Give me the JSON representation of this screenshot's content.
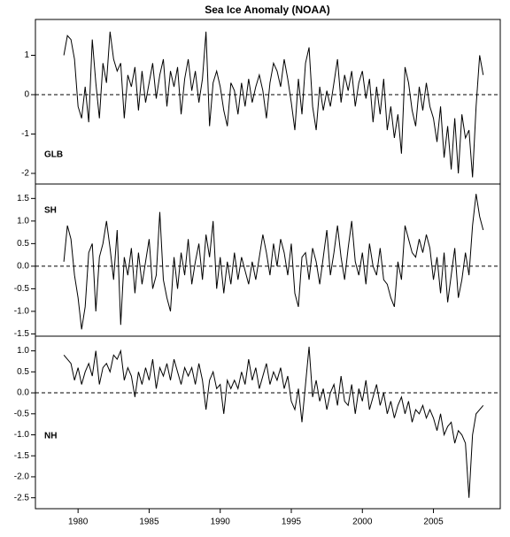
{
  "chart_data": [
    {
      "type": "line",
      "title": "Sea Ice Anomaly (NOAA)",
      "annotation": "GLB",
      "color": "#000000",
      "reference_line": 0,
      "xlim": [
        1977.0,
        2009.7
      ],
      "ylim": [
        -2.27,
        1.91
      ],
      "yticks": [
        -2,
        -1,
        0,
        1
      ],
      "x": [
        1979,
        1979.25,
        1979.5,
        1979.75,
        1980,
        1980.25,
        1980.5,
        1980.75,
        1981,
        1981.25,
        1981.5,
        1981.75,
        1982,
        1982.25,
        1982.5,
        1982.75,
        1983,
        1983.25,
        1983.5,
        1983.75,
        1984,
        1984.25,
        1984.5,
        1984.75,
        1985,
        1985.25,
        1985.5,
        1985.75,
        1986,
        1986.25,
        1986.5,
        1986.75,
        1987,
        1987.25,
        1987.5,
        1987.75,
        1988,
        1988.25,
        1988.5,
        1988.75,
        1989,
        1989.25,
        1989.5,
        1989.75,
        1990,
        1990.25,
        1990.5,
        1990.75,
        1991,
        1991.25,
        1991.5,
        1991.75,
        1992,
        1992.25,
        1992.5,
        1992.75,
        1993,
        1993.25,
        1993.5,
        1993.75,
        1994,
        1994.25,
        1994.5,
        1994.75,
        1995,
        1995.25,
        1995.5,
        1995.75,
        1996,
        1996.25,
        1996.5,
        1996.75,
        1997,
        1997.25,
        1997.5,
        1997.75,
        1998,
        1998.25,
        1998.5,
        1998.75,
        1999,
        1999.25,
        1999.5,
        1999.75,
        2000,
        2000.25,
        2000.5,
        2000.75,
        2001,
        2001.25,
        2001.5,
        2001.75,
        2002,
        2002.25,
        2002.5,
        2002.75,
        2003,
        2003.25,
        2003.5,
        2003.75,
        2004,
        2004.25,
        2004.5,
        2004.75,
        2005,
        2005.25,
        2005.5,
        2005.75,
        2006,
        2006.25,
        2006.5,
        2006.75,
        2007,
        2007.25,
        2007.5,
        2007.75,
        2008,
        2008.25,
        2008.5
      ],
      "values": [
        1.0,
        1.5,
        1.4,
        0.9,
        -0.3,
        -0.6,
        0.2,
        -0.7,
        1.4,
        0.3,
        -0.6,
        0.8,
        0.3,
        1.6,
        0.9,
        0.6,
        0.8,
        -0.6,
        0.5,
        0.2,
        0.7,
        -0.4,
        0.6,
        -0.2,
        0.3,
        0.8,
        -0.1,
        0.5,
        0.9,
        -0.3,
        0.6,
        0.2,
        0.7,
        -0.5,
        0.4,
        0.9,
        0.1,
        0.6,
        -0.2,
        0.4,
        1.6,
        -0.8,
        0.3,
        0.6,
        0.2,
        -0.4,
        -0.8,
        0.3,
        0.1,
        -0.5,
        0.3,
        -0.3,
        0.4,
        -0.2,
        0.2,
        0.5,
        0.1,
        -0.6,
        0.3,
        0.8,
        0.6,
        0.2,
        0.9,
        0.4,
        -0.2,
        -0.9,
        0.4,
        -0.5,
        0.8,
        1.2,
        -0.3,
        -0.9,
        0.2,
        -0.4,
        0.1,
        -0.3,
        0.3,
        0.9,
        -0.2,
        0.5,
        0.1,
        0.6,
        -0.3,
        0.3,
        0.6,
        -0.1,
        0.4,
        -0.7,
        0.2,
        -0.5,
        0.4,
        -0.9,
        -0.3,
        -1.1,
        -0.5,
        -1.5,
        0.7,
        0.3,
        -0.4,
        -0.8,
        0.2,
        -0.4,
        0.3,
        -0.3,
        -0.6,
        -1.2,
        -0.3,
        -1.6,
        -0.8,
        -1.9,
        -0.6,
        -2.0,
        -0.5,
        -1.1,
        -0.9,
        -2.1,
        -0.3,
        1.0,
        0.5
      ]
    },
    {
      "type": "line",
      "annotation": "SH",
      "color": "#000000",
      "reference_line": 0,
      "xlim": [
        1977.0,
        2009.7
      ],
      "ylim": [
        -1.55,
        1.82
      ],
      "yticks": [
        -1.5,
        {
          "value": -1,
          "label": "-1.0"
        },
        -0.5,
        {
          "value": 0,
          "label": "0.0"
        },
        0.5,
        {
          "value": 1,
          "label": "1.0"
        },
        1.5
      ],
      "x": [
        1979,
        1979.25,
        1979.5,
        1979.75,
        1980,
        1980.25,
        1980.5,
        1980.75,
        1981,
        1981.25,
        1981.5,
        1981.75,
        1982,
        1982.25,
        1982.5,
        1982.75,
        1983,
        1983.25,
        1983.5,
        1983.75,
        1984,
        1984.25,
        1984.5,
        1984.75,
        1985,
        1985.25,
        1985.5,
        1985.75,
        1986,
        1986.25,
        1986.5,
        1986.75,
        1987,
        1987.25,
        1987.5,
        1987.75,
        1988,
        1988.25,
        1988.5,
        1988.75,
        1989,
        1989.25,
        1989.5,
        1989.75,
        1990,
        1990.25,
        1990.5,
        1990.75,
        1991,
        1991.25,
        1991.5,
        1991.75,
        1992,
        1992.25,
        1992.5,
        1992.75,
        1993,
        1993.25,
        1993.5,
        1993.75,
        1994,
        1994.25,
        1994.5,
        1994.75,
        1995,
        1995.25,
        1995.5,
        1995.75,
        1996,
        1996.25,
        1996.5,
        1996.75,
        1997,
        1997.25,
        1997.5,
        1997.75,
        1998,
        1998.25,
        1998.5,
        1998.75,
        1999,
        1999.25,
        1999.5,
        1999.75,
        2000,
        2000.25,
        2000.5,
        2000.75,
        2001,
        2001.25,
        2001.5,
        2001.75,
        2002,
        2002.25,
        2002.5,
        2002.75,
        2003,
        2003.25,
        2003.5,
        2003.75,
        2004,
        2004.25,
        2004.5,
        2004.75,
        2005,
        2005.25,
        2005.5,
        2005.75,
        2006,
        2006.25,
        2006.5,
        2006.75,
        2007,
        2007.25,
        2007.5,
        2007.75,
        2008,
        2008.25,
        2008.5
      ],
      "values": [
        0.1,
        0.9,
        0.6,
        -0.2,
        -0.7,
        -1.4,
        -0.9,
        0.3,
        0.5,
        -1.0,
        0.2,
        0.5,
        1.0,
        0.4,
        -0.3,
        0.8,
        -1.3,
        0.2,
        -0.2,
        0.4,
        -0.6,
        0.3,
        -0.4,
        0.1,
        0.6,
        -0.5,
        -0.2,
        1.2,
        -0.3,
        -0.7,
        -1.0,
        0.2,
        -0.5,
        0.3,
        -0.2,
        0.6,
        -0.4,
        0.1,
        0.5,
        -0.3,
        0.7,
        0.2,
        1.0,
        -0.5,
        0.2,
        -0.6,
        0.1,
        -0.4,
        0.3,
        -0.3,
        0.2,
        -0.1,
        -0.4,
        0.1,
        -0.3,
        0.2,
        0.7,
        0.3,
        -0.2,
        0.5,
        0.0,
        0.6,
        0.3,
        -0.2,
        0.5,
        -0.6,
        -0.9,
        0.2,
        0.3,
        -0.3,
        0.4,
        0.1,
        -0.4,
        0.2,
        0.8,
        -0.2,
        0.3,
        0.9,
        0.2,
        -0.3,
        0.4,
        1.0,
        0.1,
        -0.2,
        0.3,
        -0.4,
        0.5,
        0.0,
        -0.2,
        0.4,
        -0.3,
        -0.4,
        -0.7,
        -0.9,
        0.1,
        -0.3,
        0.9,
        0.6,
        0.3,
        0.2,
        0.6,
        0.3,
        0.7,
        0.4,
        -0.3,
        0.2,
        -0.6,
        0.3,
        -0.8,
        -0.2,
        0.4,
        -0.7,
        -0.3,
        0.3,
        -0.2,
        0.9,
        1.6,
        1.1,
        0.8
      ]
    },
    {
      "type": "line",
      "annotation": "NH",
      "color": "#000000",
      "reference_line": 0,
      "xlim": [
        1977.0,
        2009.7
      ],
      "ylim": [
        -2.76,
        1.35
      ],
      "yticks": [
        -2.5,
        {
          "value": -2,
          "label": "-2.0"
        },
        -1.5,
        {
          "value": -1,
          "label": "-1.0"
        },
        -0.5,
        {
          "value": 0,
          "label": "0.0"
        },
        0.5,
        {
          "value": 1,
          "label": "1.0"
        }
      ],
      "xticks": [
        1980,
        1985,
        1990,
        1995,
        2000,
        2005
      ],
      "x": [
        1979,
        1979.25,
        1979.5,
        1979.75,
        1980,
        1980.25,
        1980.5,
        1980.75,
        1981,
        1981.25,
        1981.5,
        1981.75,
        1982,
        1982.25,
        1982.5,
        1982.75,
        1983,
        1983.25,
        1983.5,
        1983.75,
        1984,
        1984.25,
        1984.5,
        1984.75,
        1985,
        1985.25,
        1985.5,
        1985.75,
        1986,
        1986.25,
        1986.5,
        1986.75,
        1987,
        1987.25,
        1987.5,
        1987.75,
        1988,
        1988.25,
        1988.5,
        1988.75,
        1989,
        1989.25,
        1989.5,
        1989.75,
        1990,
        1990.25,
        1990.5,
        1990.75,
        1991,
        1991.25,
        1991.5,
        1991.75,
        1992,
        1992.25,
        1992.5,
        1992.75,
        1993,
        1993.25,
        1993.5,
        1993.75,
        1994,
        1994.25,
        1994.5,
        1994.75,
        1995,
        1995.25,
        1995.5,
        1995.75,
        1996,
        1996.25,
        1996.5,
        1996.75,
        1997,
        1997.25,
        1997.5,
        1997.75,
        1998,
        1998.25,
        1998.5,
        1998.75,
        1999,
        1999.25,
        1999.5,
        1999.75,
        2000,
        2000.25,
        2000.5,
        2000.75,
        2001,
        2001.25,
        2001.5,
        2001.75,
        2002,
        2002.25,
        2002.5,
        2002.75,
        2003,
        2003.25,
        2003.5,
        2003.75,
        2004,
        2004.25,
        2004.5,
        2004.75,
        2005,
        2005.25,
        2005.5,
        2005.75,
        2006,
        2006.25,
        2006.5,
        2006.75,
        2007,
        2007.25,
        2007.5,
        2007.75,
        2008,
        2008.25,
        2008.5
      ],
      "values": [
        0.9,
        0.8,
        0.7,
        0.3,
        0.6,
        0.2,
        0.5,
        0.7,
        0.4,
        1.0,
        0.2,
        0.6,
        0.7,
        0.5,
        0.9,
        0.8,
        1.0,
        0.3,
        0.6,
        0.4,
        -0.1,
        0.5,
        0.2,
        0.6,
        0.3,
        0.8,
        0.1,
        0.6,
        0.4,
        0.7,
        0.3,
        0.8,
        0.5,
        0.2,
        0.6,
        0.4,
        0.6,
        0.2,
        0.7,
        0.3,
        -0.4,
        0.3,
        0.5,
        0.1,
        0.2,
        -0.5,
        0.3,
        0.1,
        0.3,
        0.1,
        0.5,
        0.2,
        0.8,
        0.3,
        0.6,
        0.1,
        0.4,
        0.7,
        0.2,
        0.5,
        0.3,
        0.6,
        0.1,
        0.4,
        -0.2,
        -0.4,
        0.1,
        -0.7,
        0.2,
        1.1,
        -0.1,
        0.3,
        -0.2,
        0.1,
        -0.4,
        0.0,
        0.2,
        -0.3,
        0.4,
        -0.2,
        -0.3,
        0.2,
        -0.5,
        0.1,
        -0.2,
        0.3,
        -0.4,
        -0.1,
        0.2,
        -0.3,
        0.0,
        -0.5,
        -0.2,
        -0.6,
        -0.3,
        -0.1,
        -0.5,
        -0.2,
        -0.7,
        -0.4,
        -0.5,
        -0.3,
        -0.6,
        -0.4,
        -0.6,
        -0.9,
        -0.5,
        -1.0,
        -0.8,
        -0.7,
        -1.2,
        -0.9,
        -1.0,
        -1.2,
        -2.5,
        -1.0,
        -0.5,
        -0.4,
        -0.3
      ]
    }
  ]
}
